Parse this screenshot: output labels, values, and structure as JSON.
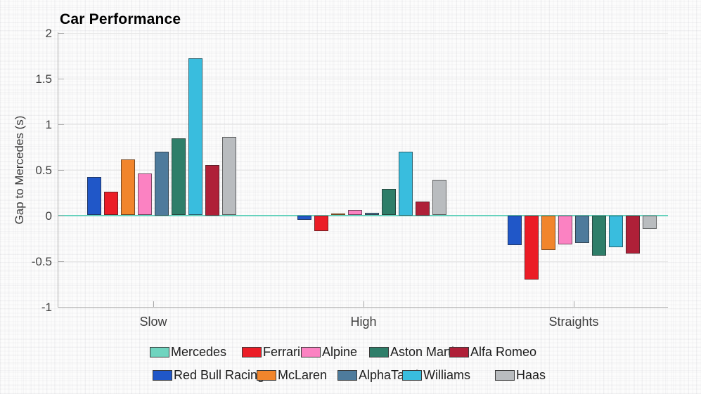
{
  "chart_data": {
    "type": "bar",
    "title": "Car Performance",
    "ylabel": "Gap to Mercedes (s)",
    "xlabel": "",
    "categories": [
      "Slow",
      "High",
      "Straights"
    ],
    "ylim": [
      -1,
      2
    ],
    "ytick_step": 0.5,
    "ytick_labels": [
      "2",
      "1.5",
      "1",
      "0.5",
      "0",
      "-0.5",
      "-1"
    ],
    "grid": "horizontal-faint",
    "zero_line_color": "#66d2bd",
    "legend_position": "bottom",
    "series": [
      {
        "name": "Mercedes",
        "color": "#6fd4bf",
        "values": [
          0,
          0,
          0
        ]
      },
      {
        "name": "Red Bull Racing",
        "color": "#2057c8",
        "values": [
          0.42,
          -0.05,
          -0.33
        ]
      },
      {
        "name": "Ferrari",
        "color": "#eb1c26",
        "values": [
          0.26,
          -0.17,
          -0.7
        ]
      },
      {
        "name": "McLaren",
        "color": "#f1852c",
        "values": [
          0.61,
          0.02,
          -0.38
        ]
      },
      {
        "name": "Alpine",
        "color": "#fb82c2",
        "values": [
          0.46,
          0.06,
          -0.32
        ]
      },
      {
        "name": "AlphaTauri",
        "color": "#4e7b9c",
        "values": [
          0.7,
          0.03,
          -0.3
        ]
      },
      {
        "name": "Aston Martin",
        "color": "#2e7e69",
        "values": [
          0.84,
          0.29,
          -0.44
        ]
      },
      {
        "name": "Williams",
        "color": "#39bdde",
        "values": [
          1.72,
          0.7,
          -0.35
        ]
      },
      {
        "name": "Alfa Romeo",
        "color": "#af2038",
        "values": [
          0.55,
          0.15,
          -0.42
        ]
      },
      {
        "name": "Haas",
        "color": "#b9bcbf",
        "values": [
          0.86,
          0.39,
          -0.15
        ]
      }
    ],
    "legend_rows": [
      [
        "Mercedes",
        "Ferrari",
        "Alpine",
        "Aston Martin",
        "Alfa Romeo"
      ],
      [
        "Red Bull Racing",
        "McLaren",
        "AlphaTauri",
        "Williams",
        "Haas"
      ]
    ]
  }
}
